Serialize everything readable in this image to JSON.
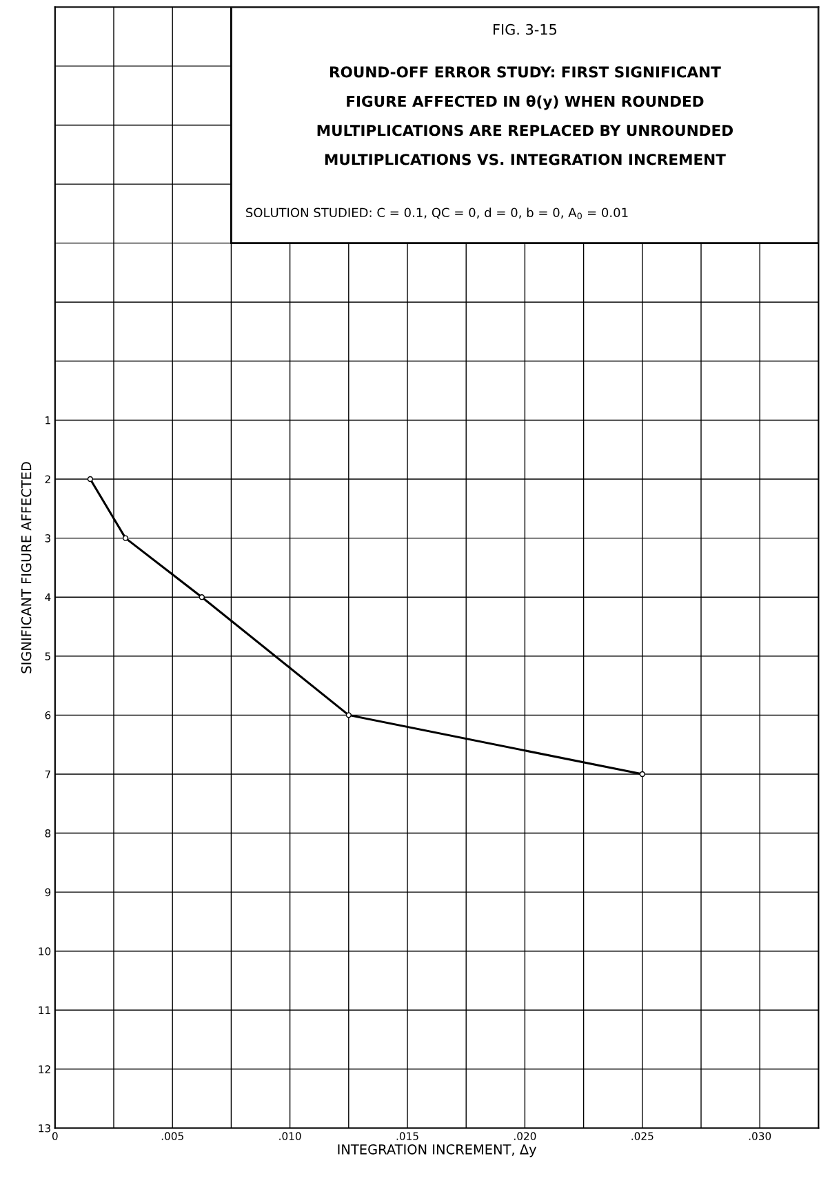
{
  "chart_data": {
    "type": "line",
    "title": "ROUND-OFF ERROR STUDY: FIRST SIGNIFICANT\nFIGURE AFFECTED IN θ(y) WHEN ROUNDED\nMULTIPLICATIONS ARE REPLACED BY UNROUNDED\nMULTIPLICATIONS VS. INTEGRATION INCREMENT",
    "subtitle": "SOLUTION STUDIED: C = 0.1, QC = 0, d = 0, b = 0, A$_{0}$ = 0.01",
    "annotations": [
      "FIG. 3-15"
    ],
    "xlabel": "INTEGRATION INCREMENT, Δy",
    "ylabel": "SIGNIFICANT FIGURE AFFECTED",
    "x": [
      0.0015,
      0.003,
      0.00625,
      0.0125,
      0.025
    ],
    "series": [
      {
        "color": "#000000",
        "values": [
          2,
          3,
          4,
          6,
          7
        ]
      }
    ],
    "marker": "circle",
    "line_style": "solid",
    "grid": true,
    "xlim": [
      0,
      0.0325
    ],
    "xticks": [
      0,
      {
        "value": 0.0025,
        "label": null
      },
      {
        "value": 0.005,
        "label": ".005"
      },
      {
        "value": 0.0075,
        "label": null
      },
      {
        "value": 0.01,
        "label": ".010"
      },
      {
        "value": 0.0125,
        "label": null
      },
      {
        "value": 0.015,
        "label": ".015"
      },
      {
        "value": 0.0175,
        "label": null
      },
      {
        "value": 0.02,
        "label": ".020"
      },
      {
        "value": 0.0225,
        "label": null
      },
      {
        "value": 0.025,
        "label": ".025"
      },
      {
        "value": 0.0275,
        "label": null
      },
      {
        "value": 0.03,
        "label": ".030"
      }
    ],
    "ylim": [
      13,
      -6
    ],
    "yticks": [
      {
        "value": -5,
        "label": null
      },
      {
        "value": -4,
        "label": null
      },
      {
        "value": -3,
        "label": null
      },
      {
        "value": -2,
        "label": null
      },
      {
        "value": -1,
        "label": null
      },
      {
        "value": 0,
        "label": null
      },
      1,
      2,
      3,
      4,
      5,
      6,
      7,
      8,
      9,
      10,
      11,
      12,
      13
    ]
  }
}
